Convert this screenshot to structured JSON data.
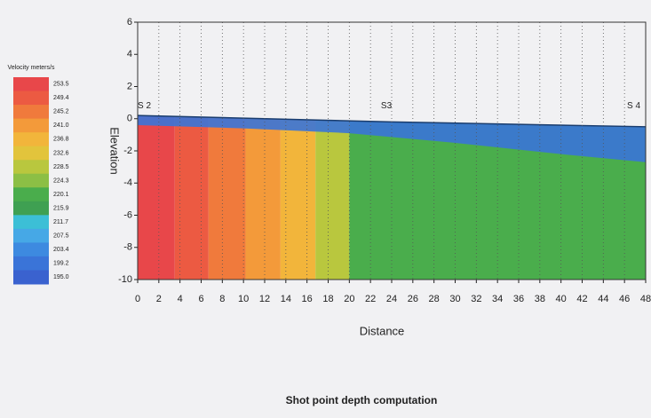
{
  "chart_data": {
    "type": "velocity-section",
    "title": "Shot point depth computation",
    "xlabel": "Distance",
    "ylabel": "Elevation",
    "legend_title": "Velocity meters/s",
    "legend_levels": [
      253.5,
      249.4,
      245.2,
      241.0,
      236.8,
      232.6,
      228.5,
      224.3,
      220.1,
      215.9,
      211.7,
      207.5,
      203.4,
      199.2,
      195.0
    ],
    "legend_level_labels": [
      "253.5",
      "249.4",
      "245.2",
      "241.0",
      "236.8",
      "232.6",
      "228.5",
      "224.3",
      "220.1",
      "215.9",
      "211.7",
      "207.5",
      "203.4",
      "199.2",
      "195.0"
    ],
    "legend_colors": [
      "#e8474a",
      "#ec5a42",
      "#f07a3c",
      "#f39a3a",
      "#f2b53b",
      "#e2c43c",
      "#b9c73e",
      "#8cbf45",
      "#4aad4c",
      "#3fa052",
      "#3cbfd6",
      "#46a8e6",
      "#3d8ae0",
      "#3a74d8",
      "#3a62cf"
    ],
    "band_edges": [
      0,
      3.5,
      6.7,
      10.2,
      13.5,
      16.8,
      20,
      48
    ],
    "band_velocities": [
      253.5,
      249.4,
      245.2,
      241.0,
      236.8,
      228.5,
      220.1
    ],
    "layer_velocity": 199.2,
    "surface": {
      "x": [
        0,
        24,
        48
      ],
      "elevation": [
        0.2,
        -0.2,
        -0.5
      ]
    },
    "layer_base": {
      "x": [
        0,
        10,
        20,
        30,
        40,
        48
      ],
      "elevation": [
        -0.4,
        -0.6,
        -0.9,
        -1.5,
        -2.2,
        -2.7
      ]
    },
    "stations": [
      {
        "label": "S 2",
        "x": 0
      },
      {
        "label": "S3",
        "x": 23.5
      },
      {
        "label": "S 4",
        "x": 47.5
      }
    ],
    "xlim": [
      0,
      48
    ],
    "xticks": [
      0,
      2,
      4,
      6,
      8,
      10,
      12,
      14,
      16,
      18,
      20,
      22,
      24,
      26,
      28,
      30,
      32,
      34,
      36,
      38,
      40,
      42,
      44,
      46,
      48
    ],
    "ylim": [
      -10,
      6
    ],
    "yticks": [
      -10,
      -8,
      -6,
      -4,
      -2,
      0,
      2,
      4,
      6
    ],
    "grid": true
  }
}
